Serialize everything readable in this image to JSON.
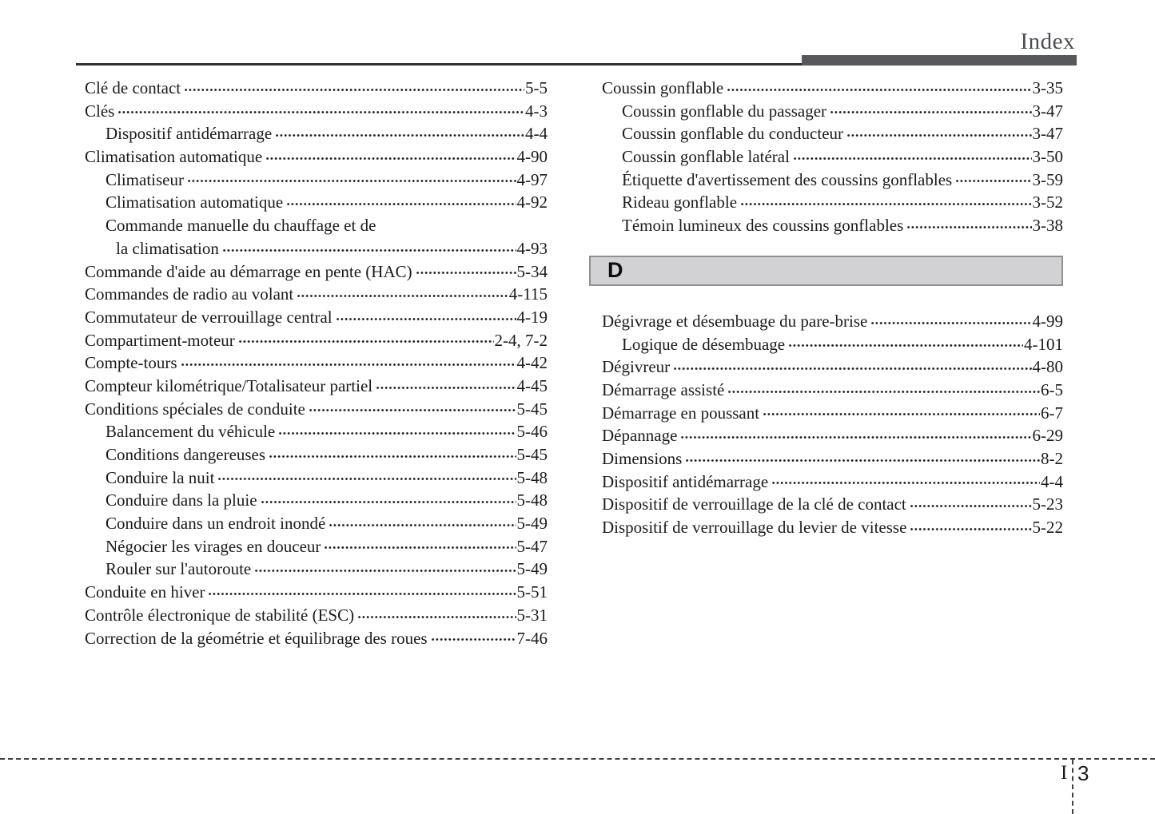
{
  "header": {
    "title": "Index"
  },
  "left_column": {
    "entries": [
      {
        "label": "Clé de contact",
        "page": "5-5",
        "indent": 0
      },
      {
        "label": "Clés",
        "page": "4-3",
        "indent": 0
      },
      {
        "label": "Dispositif antidémarrage",
        "page": "4-4",
        "indent": 1
      },
      {
        "label": "Climatisation automatique",
        "page": "4-90",
        "indent": 0
      },
      {
        "label": "Climatiseur",
        "page": "4-97",
        "indent": 1
      },
      {
        "label": "Climatisation automatique",
        "page": "4-92",
        "indent": 1
      },
      {
        "label": "Commande manuelle du chauffage et de",
        "page": null,
        "indent": 1
      },
      {
        "label": "la climatisation",
        "page": "4-93",
        "indent": 2
      },
      {
        "label": "Commande d'aide au démarrage en pente (HAC)",
        "page": "5-34",
        "indent": 0
      },
      {
        "label": "Commandes de radio au volant",
        "page": "4-115",
        "indent": 0
      },
      {
        "label": "Commutateur de verrouillage central",
        "page": "4-19",
        "indent": 0
      },
      {
        "label": "Compartiment-moteur",
        "page": "2-4, 7-2",
        "indent": 0
      },
      {
        "label": "Compte-tours",
        "page": "4-42",
        "indent": 0
      },
      {
        "label": "Compteur kilométrique/Totalisateur partiel",
        "page": "4-45",
        "indent": 0
      },
      {
        "label": "Conditions spéciales de conduite",
        "page": "5-45",
        "indent": 0
      },
      {
        "label": "Balancement du véhicule",
        "page": "5-46",
        "indent": 1
      },
      {
        "label": "Conditions dangereuses",
        "page": "5-45",
        "indent": 1
      },
      {
        "label": "Conduire la nuit",
        "page": "5-48",
        "indent": 1
      },
      {
        "label": "Conduire dans la pluie",
        "page": "5-48",
        "indent": 1
      },
      {
        "label": "Conduire dans un endroit inondé",
        "page": "5-49",
        "indent": 1
      },
      {
        "label": "Négocier les virages en douceur",
        "page": "5-47",
        "indent": 1
      },
      {
        "label": "Rouler sur l'autoroute",
        "page": "5-49",
        "indent": 1
      },
      {
        "label": "Conduite en hiver",
        "page": "5-51",
        "indent": 0
      },
      {
        "label": "Contrôle électronique de stabilité (ESC)",
        "page": "5-31",
        "indent": 0
      },
      {
        "label": "Correction de la géométrie et équilibrage des roues",
        "page": "7-46",
        "indent": 0
      }
    ]
  },
  "right_column": {
    "groups": [
      {
        "type": "entries",
        "entries": [
          {
            "label": "Coussin gonflable",
            "page": "3-35",
            "indent": 0
          },
          {
            "label": "Coussin gonflable du passager",
            "page": "3-47",
            "indent": 1
          },
          {
            "label": "Coussin gonflable du conducteur",
            "page": "3-47",
            "indent": 1
          },
          {
            "label": "Coussin gonflable latéral",
            "page": "3-50",
            "indent": 1
          },
          {
            "label": "Étiquette d'avertissement des coussins gonflables",
            "page": "3-59",
            "indent": 1
          },
          {
            "label": "Rideau gonflable",
            "page": "3-52",
            "indent": 1
          },
          {
            "label": "Témoin lumineux des coussins gonflables",
            "page": "3-38",
            "indent": 1
          }
        ]
      },
      {
        "type": "section_header",
        "letter": "D"
      },
      {
        "type": "entries",
        "entries": [
          {
            "label": "Dégivrage et désembuage du pare-brise",
            "page": "4-99",
            "indent": 0
          },
          {
            "label": "Logique de désembuage",
            "page": "4-101",
            "indent": 1
          },
          {
            "label": "Dégivreur",
            "page": "4-80",
            "indent": 0
          },
          {
            "label": "Démarrage assisté",
            "page": "6-5",
            "indent": 0
          },
          {
            "label": "Démarrage en poussant",
            "page": "6-7",
            "indent": 0
          },
          {
            "label": "Dépannage",
            "page": "6-29",
            "indent": 0
          },
          {
            "label": "Dimensions",
            "page": "8-2",
            "indent": 0
          },
          {
            "label": "Dispositif antidémarrage",
            "page": "4-4",
            "indent": 0
          },
          {
            "label": "Dispositif de verrouillage de la clé de contact",
            "page": "5-23",
            "indent": 0
          },
          {
            "label": "Dispositif de verrouillage du levier de vitesse",
            "page": "5-22",
            "indent": 0
          }
        ]
      }
    ]
  },
  "footer": {
    "section_label": "I",
    "page_number": "3"
  },
  "colors": {
    "text": "#1b1b1b",
    "title": "#4b4d52",
    "accent_bar": "#56585c",
    "header_rule": "#2e3033",
    "section_box_bg": "#d2d2d5",
    "section_box_border": "#8f9094",
    "dashed_line": "#3f3f3f"
  }
}
